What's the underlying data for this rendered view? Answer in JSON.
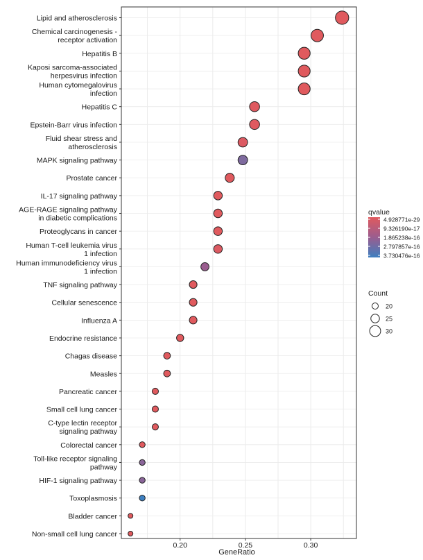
{
  "chart_data": {
    "type": "scatter",
    "subtype": "dotplot",
    "xlabel": "GeneRatio",
    "ylabel": "",
    "xlim": [
      0.155,
      0.335
    ],
    "x_ticks": [
      {
        "value": 0.2,
        "label": "0.20"
      },
      {
        "value": 0.25,
        "label": "0.25"
      },
      {
        "value": 0.3,
        "label": "0.30"
      }
    ],
    "grid": true,
    "legend_position": "right",
    "color_legend": {
      "title": "qvalue",
      "labels": [
        "4.928771e-29",
        "9.326190e-17",
        "1.865238e-16",
        "2.797857e-16",
        "3.730476e-16"
      ],
      "low_color": "#e05a5e",
      "mid_color": "#9a5d8f",
      "high_color": "#3d7fc0"
    },
    "size_legend": {
      "title": "Count",
      "labels": [
        "20",
        "25",
        "30"
      ],
      "values": [
        20,
        25,
        30
      ]
    },
    "points": [
      {
        "term": [
          "Lipid and atherosclerosis"
        ],
        "gene_ratio": 0.324,
        "count": 35,
        "color": "#e05a5e"
      },
      {
        "term": [
          "Chemical carcinogenesis -",
          "receptor activation"
        ],
        "gene_ratio": 0.305,
        "count": 33,
        "color": "#e05a5e"
      },
      {
        "term": [
          "Hepatitis B"
        ],
        "gene_ratio": 0.295,
        "count": 32,
        "color": "#e05a5e"
      },
      {
        "term": [
          "Kaposi sarcoma-associated",
          "herpesvirus infection"
        ],
        "gene_ratio": 0.295,
        "count": 32,
        "color": "#e05a5e"
      },
      {
        "term": [
          "Human cytomegalovirus",
          "infection"
        ],
        "gene_ratio": 0.295,
        "count": 32,
        "color": "#e05a5e"
      },
      {
        "term": [
          "Hepatitis C"
        ],
        "gene_ratio": 0.257,
        "count": 28,
        "color": "#df5a60"
      },
      {
        "term": [
          "Epstein-Barr virus infection"
        ],
        "gene_ratio": 0.257,
        "count": 28,
        "color": "#df5a60"
      },
      {
        "term": [
          "Fluid shear stress and",
          "atherosclerosis"
        ],
        "gene_ratio": 0.248,
        "count": 27,
        "color": "#dc5a62"
      },
      {
        "term": [
          "MAPK signaling pathway"
        ],
        "gene_ratio": 0.248,
        "count": 27,
        "color": "#7e6a9e"
      },
      {
        "term": [
          "Prostate cancer"
        ],
        "gene_ratio": 0.238,
        "count": 26,
        "color": "#e05a5e"
      },
      {
        "term": [
          "IL-17 signaling pathway"
        ],
        "gene_ratio": 0.229,
        "count": 25,
        "color": "#e05a5e"
      },
      {
        "term": [
          "AGE-RAGE signaling pathway",
          "in diabetic complications"
        ],
        "gene_ratio": 0.229,
        "count": 25,
        "color": "#e05a5e"
      },
      {
        "term": [
          "Proteoglycans in cancer"
        ],
        "gene_ratio": 0.229,
        "count": 25,
        "color": "#e05a5e"
      },
      {
        "term": [
          "Human T-cell leukemia virus",
          "1 infection"
        ],
        "gene_ratio": 0.229,
        "count": 25,
        "color": "#dc5a62"
      },
      {
        "term": [
          "Human immunodeficiency virus",
          "1 infection"
        ],
        "gene_ratio": 0.219,
        "count": 24,
        "color": "#9a5d8f"
      },
      {
        "term": [
          "TNF signaling pathway"
        ],
        "gene_ratio": 0.21,
        "count": 23,
        "color": "#e05a5e"
      },
      {
        "term": [
          "Cellular senescence"
        ],
        "gene_ratio": 0.21,
        "count": 23,
        "color": "#e05a5e"
      },
      {
        "term": [
          "Influenza A"
        ],
        "gene_ratio": 0.21,
        "count": 23,
        "color": "#e05a5e"
      },
      {
        "term": [
          "Endocrine resistance"
        ],
        "gene_ratio": 0.2,
        "count": 22,
        "color": "#e05a5e"
      },
      {
        "term": [
          "Chagas disease"
        ],
        "gene_ratio": 0.19,
        "count": 21,
        "color": "#e05a5e"
      },
      {
        "term": [
          "Measles"
        ],
        "gene_ratio": 0.19,
        "count": 21,
        "color": "#e05a5e"
      },
      {
        "term": [
          "Pancreatic cancer"
        ],
        "gene_ratio": 0.181,
        "count": 20,
        "color": "#e05a5e"
      },
      {
        "term": [
          "Small cell lung cancer"
        ],
        "gene_ratio": 0.181,
        "count": 20,
        "color": "#e05a5e"
      },
      {
        "term": [
          "C-type lectin receptor",
          "signaling pathway"
        ],
        "gene_ratio": 0.181,
        "count": 20,
        "color": "#e05a5e"
      },
      {
        "term": [
          "Colorectal cancer"
        ],
        "gene_ratio": 0.171,
        "count": 19,
        "color": "#e05a5e"
      },
      {
        "term": [
          "Toll-like receptor signaling",
          "pathway"
        ],
        "gene_ratio": 0.171,
        "count": 19,
        "color": "#8a6599"
      },
      {
        "term": [
          "HIF-1 signaling pathway"
        ],
        "gene_ratio": 0.171,
        "count": 19,
        "color": "#8a6599"
      },
      {
        "term": [
          "Toxoplasmosis"
        ],
        "gene_ratio": 0.171,
        "count": 19,
        "color": "#3d7fc0"
      },
      {
        "term": [
          "Bladder cancer"
        ],
        "gene_ratio": 0.162,
        "count": 17,
        "color": "#e05a5e"
      },
      {
        "term": [
          "Non-small cell lung cancer"
        ],
        "gene_ratio": 0.162,
        "count": 17,
        "color": "#e05a5e"
      }
    ]
  }
}
